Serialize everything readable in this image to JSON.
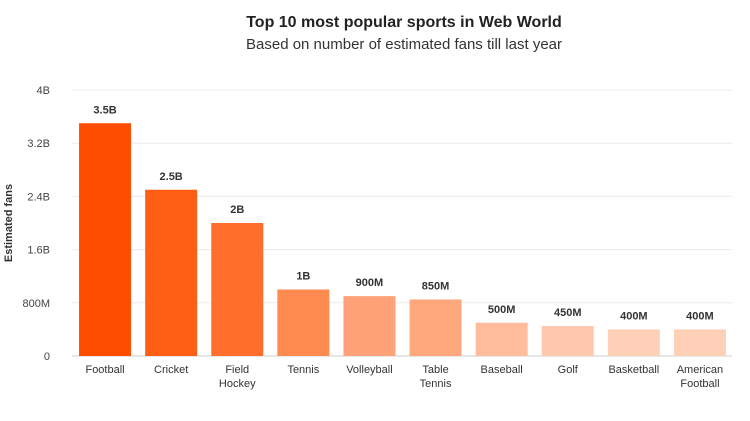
{
  "chart_data": {
    "type": "bar",
    "title": "Top 10 most popular sports in Web World",
    "subtitle": "Based on number of estimated fans till last year",
    "xlabel": "",
    "ylabel": "Estimated fans",
    "ylim": [
      0,
      4000000000
    ],
    "yticks": [
      0,
      800000000,
      1600000000,
      2400000000,
      3200000000,
      4000000000
    ],
    "ytick_labels": [
      "0",
      "800M",
      "1.6B",
      "2.4B",
      "3.2B",
      "4B"
    ],
    "grid": true,
    "categories": [
      [
        "Football"
      ],
      [
        "Cricket"
      ],
      [
        "Field",
        "Hockey"
      ],
      [
        "Tennis"
      ],
      [
        "Volleyball"
      ],
      [
        "Table",
        "Tennis"
      ],
      [
        "Baseball"
      ],
      [
        "Golf"
      ],
      [
        "Basketball"
      ],
      [
        "American",
        "Football"
      ]
    ],
    "values": [
      3500000000,
      2500000000,
      2000000000,
      1000000000,
      900000000,
      850000000,
      500000000,
      450000000,
      400000000,
      400000000
    ],
    "value_labels": [
      "3.5B",
      "2.5B",
      "2B",
      "1B",
      "900M",
      "850M",
      "500M",
      "450M",
      "400M",
      "400M"
    ],
    "colors": [
      "#ff4d00",
      "#ff5f14",
      "#ff6e2a",
      "#ff8a4f",
      "#ffa277",
      "#ffa87e",
      "#ffbd9d",
      "#ffc8ad",
      "#ffd0b8",
      "#ffd0b8"
    ]
  }
}
